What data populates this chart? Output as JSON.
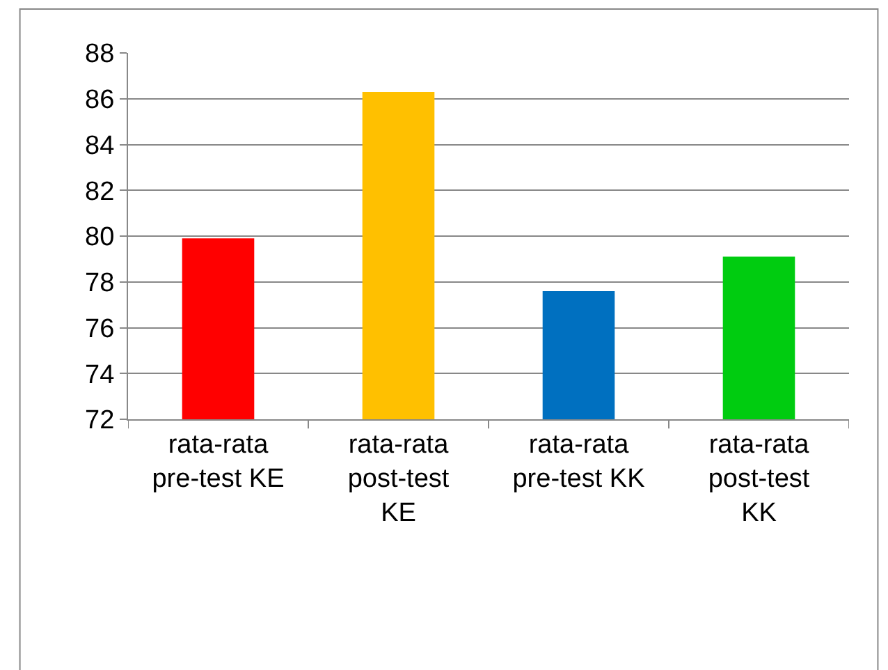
{
  "chart_data": {
    "type": "bar",
    "categories": [
      "rata-rata pre-test KE",
      "rata-rata post-test KE",
      "rata-rata pre-test KK",
      "rata-rata post-test KK"
    ],
    "values": [
      79.9,
      86.3,
      77.6,
      79.1
    ],
    "colors": [
      "#ff0000",
      "#ffc000",
      "#0070c0",
      "#00cc10"
    ],
    "ylim": [
      72,
      88
    ],
    "yticks": [
      72,
      74,
      76,
      78,
      80,
      82,
      84,
      86,
      88
    ],
    "grid": "y"
  }
}
